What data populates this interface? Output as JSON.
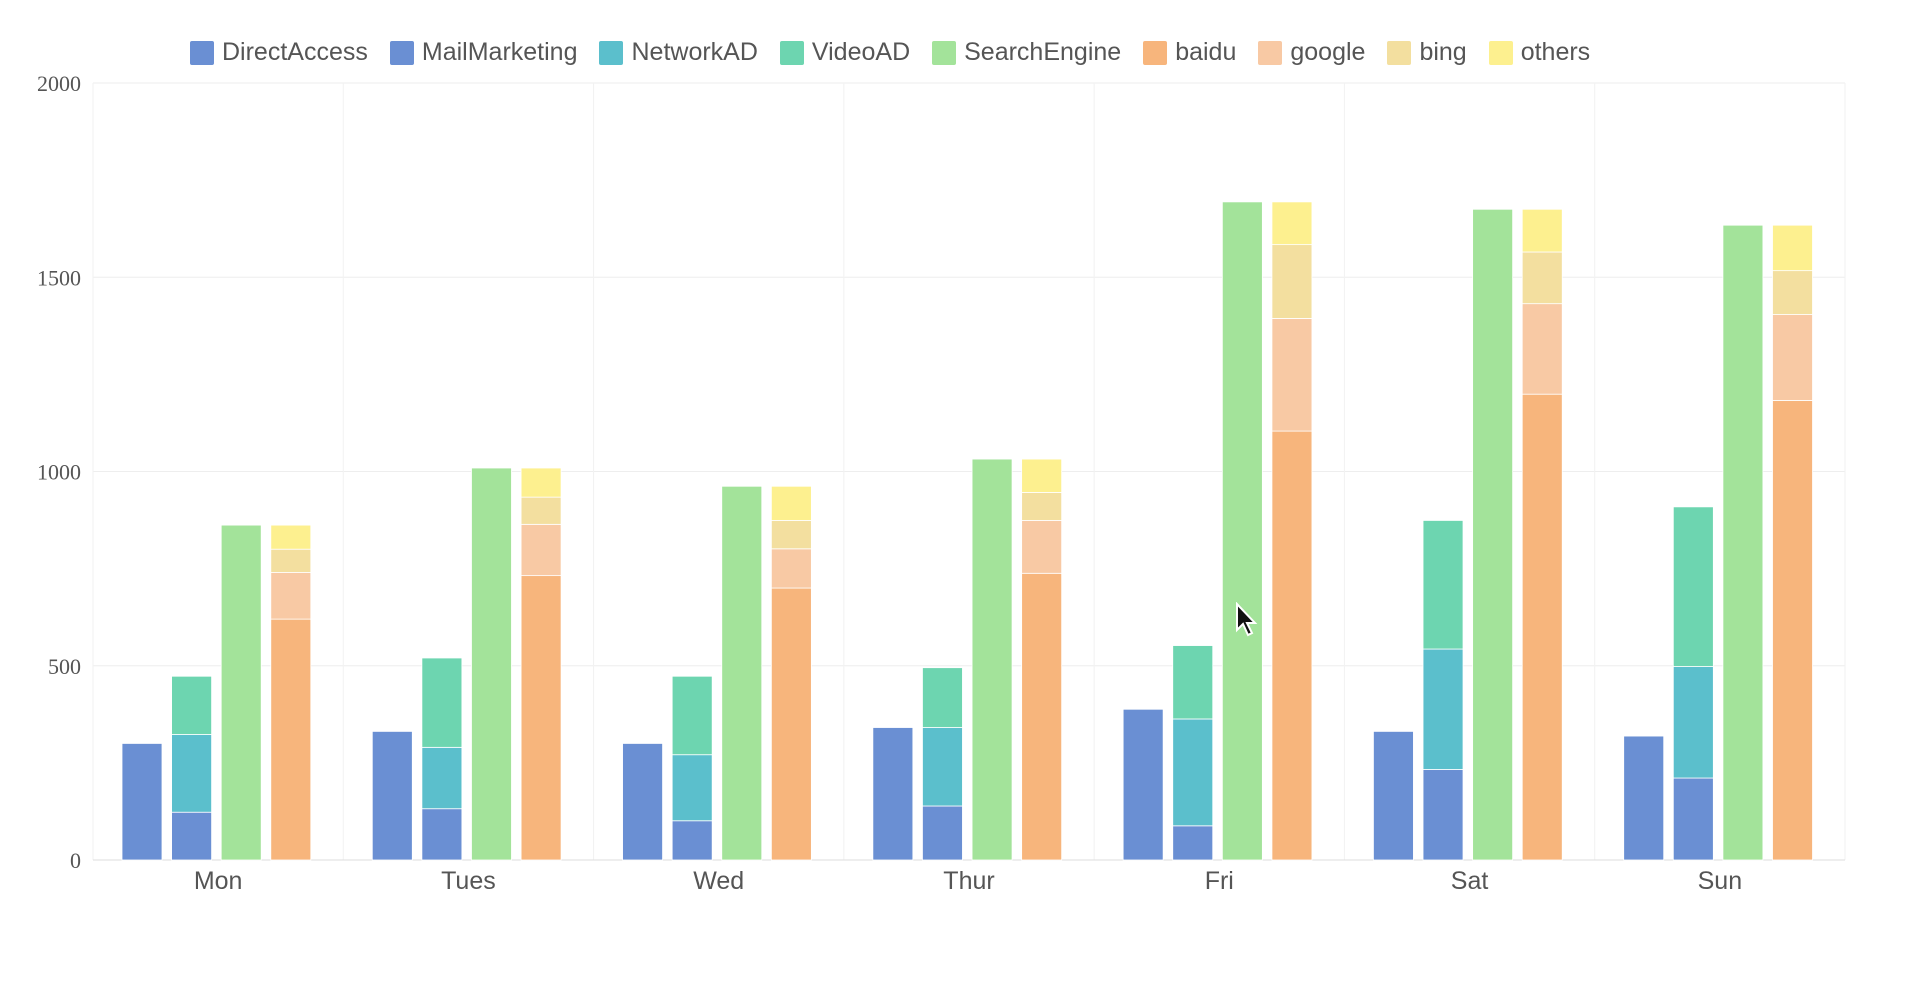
{
  "chart_data": {
    "type": "bar",
    "stacked": true,
    "categories": [
      "Mon",
      "Tues",
      "Wed",
      "Thur",
      "Fri",
      "Sat",
      "Sun"
    ],
    "ylim": [
      0,
      2000
    ],
    "yticks": [
      "0",
      "500",
      "1000",
      "1500",
      "2000"
    ],
    "grid": true,
    "legend_position": "top",
    "series": [
      {
        "name": "DirectAccess",
        "stack": "direct",
        "color": "#6a8fd3",
        "values": [
          300,
          331,
          300,
          341,
          388,
          331,
          319
        ]
      },
      {
        "name": "MailMarketing",
        "stack": "ad",
        "color": "#6a8fd3",
        "values": [
          123,
          132,
          101,
          139,
          88,
          233,
          211
        ]
      },
      {
        "name": "NetworkAD",
        "stack": "ad",
        "color": "#5bbfcc",
        "values": [
          200,
          158,
          170,
          202,
          275,
          310,
          287
        ]
      },
      {
        "name": "VideoAD",
        "stack": "ad",
        "color": "#6dd5b0",
        "values": [
          150,
          230,
          202,
          154,
          189,
          331,
          411
        ]
      },
      {
        "name": "SearchEngine",
        "stack": "search",
        "color": "#a3e39a",
        "values": [
          862,
          1009,
          962,
          1032,
          1694,
          1675,
          1634
        ]
      },
      {
        "name": "baidu",
        "stack": "engine",
        "color": "#f7b57c",
        "values": [
          620,
          732,
          700,
          738,
          1104,
          1199,
          1183
        ]
      },
      {
        "name": "google",
        "stack": "engine",
        "color": "#f8c9a4",
        "values": [
          120,
          132,
          101,
          136,
          290,
          233,
          221
        ]
      },
      {
        "name": "bing",
        "stack": "engine",
        "color": "#f3df9f",
        "values": [
          60,
          70,
          73,
          72,
          190,
          133,
          113
        ]
      },
      {
        "name": "others",
        "stack": "engine",
        "color": "#fdf08f",
        "values": [
          62,
          75,
          88,
          86,
          110,
          110,
          117
        ]
      }
    ]
  }
}
